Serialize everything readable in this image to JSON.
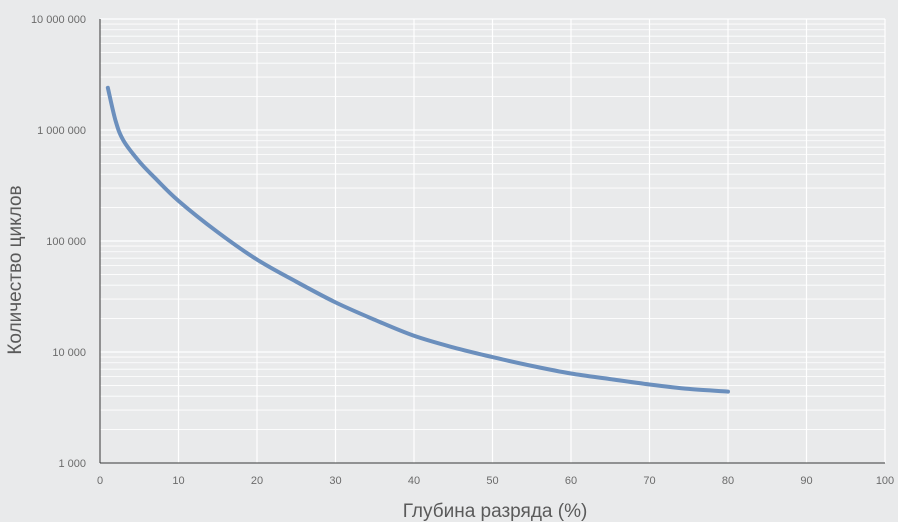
{
  "chart_data": {
    "type": "line",
    "title": "",
    "xlabel": "Глубина разряда (%)",
    "ylabel": "Количество циклов",
    "xlim": [
      0,
      100
    ],
    "ylim": [
      1000,
      10000000
    ],
    "yscale": "log",
    "grid": true,
    "x_ticks": [
      {
        "value": 0,
        "label": "0"
      },
      {
        "value": 10,
        "label": "10"
      },
      {
        "value": 20,
        "label": "20"
      },
      {
        "value": 30,
        "label": "30"
      },
      {
        "value": 40,
        "label": "40"
      },
      {
        "value": 50,
        "label": "50"
      },
      {
        "value": 60,
        "label": "60"
      },
      {
        "value": 70,
        "label": "70"
      },
      {
        "value": 80,
        "label": "80"
      },
      {
        "value": 90,
        "label": "90"
      },
      {
        "value": 100,
        "label": "100"
      }
    ],
    "y_ticks": [
      {
        "value": 1000,
        "label": "1 000"
      },
      {
        "value": 10000,
        "label": "10 000"
      },
      {
        "value": 100000,
        "label": "100 000"
      },
      {
        "value": 1000000,
        "label": "1 000 000"
      },
      {
        "value": 10000000,
        "label": "10 000 000"
      }
    ],
    "series": [
      {
        "color": "#6b8fbd",
        "x": [
          1,
          2,
          3,
          5,
          7,
          10,
          15,
          20,
          25,
          30,
          35,
          40,
          45,
          50,
          55,
          60,
          65,
          70,
          75,
          80
        ],
        "y": [
          2400000,
          1200000,
          800000,
          520000,
          370000,
          230000,
          120000,
          68000,
          43000,
          28000,
          19500,
          14000,
          11000,
          9000,
          7500,
          6400,
          5700,
          5100,
          4650,
          4400
        ]
      }
    ]
  }
}
